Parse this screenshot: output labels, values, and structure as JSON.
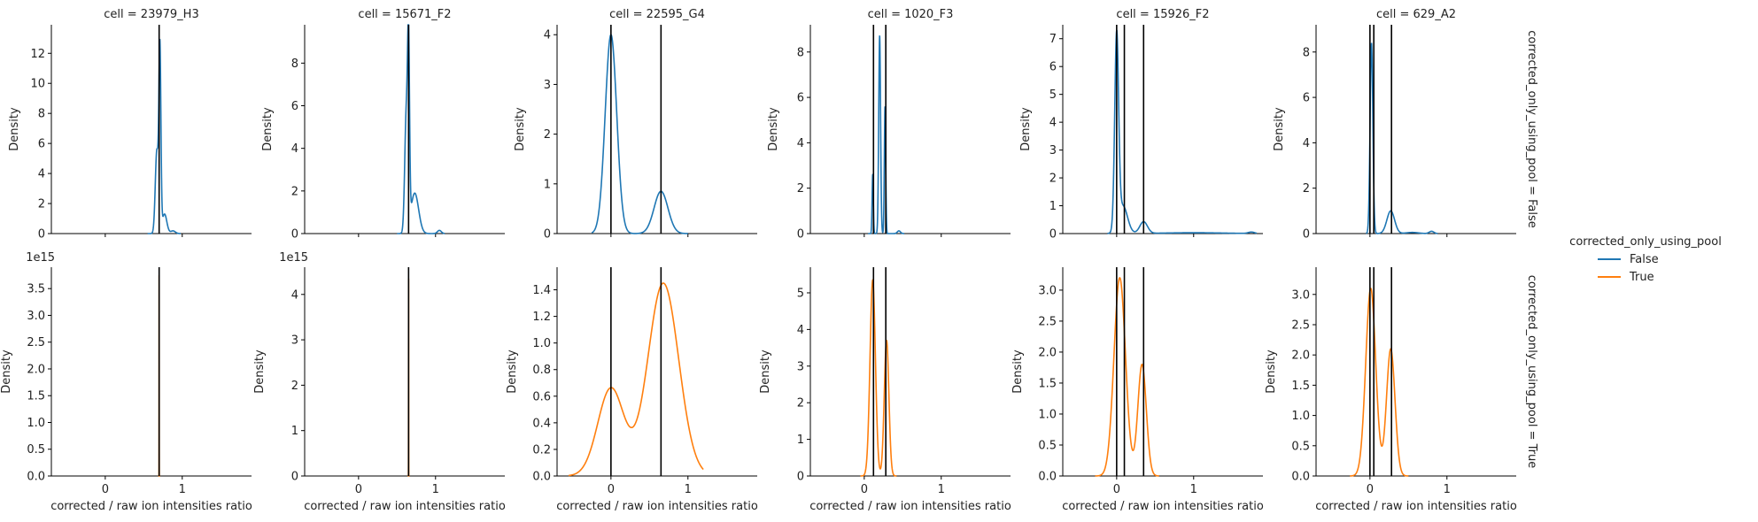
{
  "chart_data": {
    "type": "kde-facet-grid",
    "legend": {
      "title": "corrected_only_using_pool",
      "placement": "right",
      "entries": [
        {
          "label": "False",
          "color": "#1f77b4"
        },
        {
          "label": "True",
          "color": "#ff7f0e"
        }
      ]
    },
    "row_labels": [
      "corrected_only_using_pool = False",
      "corrected_only_using_pool = True"
    ],
    "xlabel": "corrected / raw ion intensities ratio",
    "ylabel": "Density",
    "xlim": [
      -0.7,
      1.9
    ],
    "x_ticks": [
      0,
      1
    ],
    "x_tick_labels": [
      "0",
      "1"
    ],
    "columns": [
      {
        "title": "cell = 23979_H3",
        "vlines": [
          0.7
        ],
        "rows": [
          {
            "ylim": [
              0,
              13.9
            ],
            "yticks": [
              0,
              2,
              4,
              6,
              8,
              10,
              12
            ],
            "offset_label": "",
            "peaks": [
              {
                "mu": 0.67,
                "sigma": 0.02,
                "amp": 5.5
              },
              {
                "mu": 0.71,
                "sigma": 0.013,
                "amp": 12.0
              },
              {
                "mu": 0.77,
                "sigma": 0.03,
                "amp": 1.3
              },
              {
                "mu": 0.88,
                "sigma": 0.03,
                "amp": 0.18
              }
            ],
            "range": [
              0.55,
              0.98
            ]
          },
          {
            "ylim": [
              0,
              3.9
            ],
            "yticks": [
              0,
              0.5,
              1.0,
              1.5,
              2.0,
              2.5,
              3.0,
              3.5
            ],
            "offset_label": "1e15",
            "peaks": [
              {
                "mu": 0.7,
                "sigma": 0.0008,
                "amp": 3.75
              }
            ],
            "range": [
              0.69,
              0.71
            ]
          }
        ]
      },
      {
        "title": "cell = 15671_F2",
        "vlines": [
          0.65
        ],
        "rows": [
          {
            "ylim": [
              0,
              9.8
            ],
            "yticks": [
              0,
              2,
              4,
              6,
              8
            ],
            "offset_label": "",
            "peaks": [
              {
                "mu": 0.62,
                "sigma": 0.02,
                "amp": 5.5
              },
              {
                "mu": 0.65,
                "sigma": 0.013,
                "amp": 7.6
              },
              {
                "mu": 0.73,
                "sigma": 0.05,
                "amp": 1.9
              },
              {
                "mu": 1.05,
                "sigma": 0.025,
                "amp": 0.15
              }
            ],
            "range": [
              0.5,
              1.12
            ]
          },
          {
            "ylim": [
              0,
              4.6
            ],
            "yticks": [
              0,
              1,
              2,
              3,
              4
            ],
            "offset_label": "1e15",
            "peaks": [
              {
                "mu": 0.65,
                "sigma": 0.0008,
                "amp": 4.35
              }
            ],
            "range": [
              0.64,
              0.66
            ]
          }
        ]
      },
      {
        "title": "cell = 22595_G4",
        "vlines": [
          0.0,
          0.65
        ],
        "rows": [
          {
            "ylim": [
              0,
              4.2
            ],
            "yticks": [
              0,
              1,
              2,
              3,
              4
            ],
            "offset_label": "",
            "peaks": [
              {
                "mu": 0.0,
                "sigma": 0.075,
                "amp": 4.0
              },
              {
                "mu": 0.65,
                "sigma": 0.09,
                "amp": 0.85
              }
            ],
            "range": [
              -0.25,
              1.0
            ]
          },
          {
            "ylim": [
              0,
              1.57
            ],
            "yticks": [
              0,
              0.2,
              0.4,
              0.6,
              0.8,
              1.0,
              1.2,
              1.4
            ],
            "offset_label": "",
            "peaks": [
              {
                "mu": 0.0,
                "sigma": 0.17,
                "amp": 0.66
              },
              {
                "mu": 0.68,
                "sigma": 0.2,
                "amp": 1.45
              }
            ],
            "range": [
              -0.55,
              1.2
            ]
          }
        ]
      },
      {
        "title": "cell = 1020_F3",
        "vlines": [
          0.12,
          0.28
        ],
        "rows": [
          {
            "ylim": [
              0,
              9.2
            ],
            "yticks": [
              0,
              2,
              4,
              6,
              8
            ],
            "offset_label": "",
            "peaks": [
              {
                "mu": 0.11,
                "sigma": 0.008,
                "amp": 2.6
              },
              {
                "mu": 0.2,
                "sigma": 0.012,
                "amp": 8.7
              },
              {
                "mu": 0.27,
                "sigma": 0.009,
                "amp": 5.6
              },
              {
                "mu": 0.45,
                "sigma": 0.02,
                "amp": 0.12
              }
            ],
            "range": [
              0.05,
              0.52
            ]
          },
          {
            "ylim": [
              0,
              5.7
            ],
            "yticks": [
              0,
              1,
              2,
              3,
              4,
              5
            ],
            "offset_label": "",
            "peaks": [
              {
                "mu": 0.11,
                "sigma": 0.035,
                "amp": 5.35
              },
              {
                "mu": 0.29,
                "sigma": 0.03,
                "amp": 3.7
              }
            ],
            "range": [
              -0.05,
              0.42
            ]
          }
        ]
      },
      {
        "title": "cell = 15926_F2",
        "vlines": [
          0.0,
          0.1,
          0.35
        ],
        "rows": [
          {
            "ylim": [
              0,
              7.5
            ],
            "yticks": [
              0,
              1,
              2,
              3,
              4,
              5,
              6,
              7
            ],
            "offset_label": "",
            "peaks": [
              {
                "mu": 0.0,
                "sigma": 0.025,
                "amp": 6.9
              },
              {
                "mu": 0.08,
                "sigma": 0.06,
                "amp": 1.0
              },
              {
                "mu": 0.35,
                "sigma": 0.05,
                "amp": 0.42
              },
              {
                "mu": 1.0,
                "sigma": 0.4,
                "amp": 0.03
              },
              {
                "mu": 1.75,
                "sigma": 0.04,
                "amp": 0.05
              }
            ],
            "range": [
              -0.12,
              1.82
            ]
          },
          {
            "ylim": [
              0,
              3.37
            ],
            "yticks": [
              0,
              0.5,
              1.0,
              1.5,
              2.0,
              2.5,
              3.0
            ],
            "offset_label": "",
            "peaks": [
              {
                "mu": 0.04,
                "sigma": 0.075,
                "amp": 3.2
              },
              {
                "mu": 0.33,
                "sigma": 0.055,
                "amp": 1.8
              }
            ],
            "range": [
              -0.28,
              0.55
            ]
          }
        ]
      },
      {
        "title": "cell = 629_A2",
        "vlines": [
          0.0,
          0.05,
          0.28
        ],
        "rows": [
          {
            "ylim": [
              0,
              9.2
            ],
            "yticks": [
              0,
              2,
              4,
              6,
              8
            ],
            "offset_label": "",
            "peaks": [
              {
                "mu": 0.02,
                "sigma": 0.018,
                "amp": 8.4
              },
              {
                "mu": 0.27,
                "sigma": 0.05,
                "amp": 1.0
              },
              {
                "mu": 0.55,
                "sigma": 0.08,
                "amp": 0.05
              },
              {
                "mu": 0.8,
                "sigma": 0.03,
                "amp": 0.1
              }
            ],
            "range": [
              -0.05,
              0.88
            ]
          },
          {
            "ylim": [
              0,
              3.45
            ],
            "yticks": [
              0,
              0.5,
              1.0,
              1.5,
              2.0,
              2.5,
              3.0
            ],
            "offset_label": "",
            "peaks": [
              {
                "mu": 0.01,
                "sigma": 0.065,
                "amp": 3.1
              },
              {
                "mu": 0.27,
                "sigma": 0.055,
                "amp": 2.1
              }
            ],
            "range": [
              -0.26,
              0.5
            ]
          }
        ]
      }
    ]
  }
}
